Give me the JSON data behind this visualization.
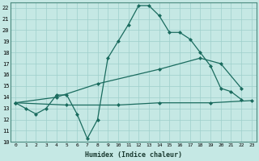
{
  "xlabel": "Humidex (Indice chaleur)",
  "xlim": [
    -0.5,
    23.5
  ],
  "ylim": [
    10,
    22.5
  ],
  "yticks": [
    10,
    11,
    12,
    13,
    14,
    15,
    16,
    17,
    18,
    19,
    20,
    21,
    22
  ],
  "xticks": [
    0,
    1,
    2,
    3,
    4,
    5,
    6,
    7,
    8,
    9,
    10,
    11,
    12,
    13,
    14,
    15,
    16,
    17,
    18,
    19,
    20,
    21,
    22,
    23
  ],
  "background_color": "#c5e8e4",
  "grid_color": "#9dcfcb",
  "line_color": "#1a6b5e",
  "series": [
    {
      "x": [
        0,
        1,
        2,
        3,
        4,
        5,
        6,
        7,
        8,
        9,
        10,
        11,
        12,
        13,
        14,
        15,
        16,
        17,
        18,
        19,
        20,
        21,
        22
      ],
      "y": [
        13.5,
        13.0,
        12.5,
        13.0,
        14.2,
        14.2,
        12.5,
        10.3,
        12.0,
        17.5,
        19.0,
        20.5,
        22.2,
        22.2,
        21.3,
        19.8,
        19.8,
        19.2,
        18.0,
        16.8,
        14.8,
        14.5,
        13.8
      ]
    },
    {
      "x": [
        0,
        4,
        8,
        14,
        18,
        20,
        22
      ],
      "y": [
        13.5,
        14.0,
        15.2,
        16.5,
        17.5,
        17.0,
        14.8
      ]
    },
    {
      "x": [
        0,
        5,
        10,
        14,
        19,
        23
      ],
      "y": [
        13.5,
        13.3,
        13.3,
        13.5,
        13.5,
        13.7
      ]
    }
  ]
}
